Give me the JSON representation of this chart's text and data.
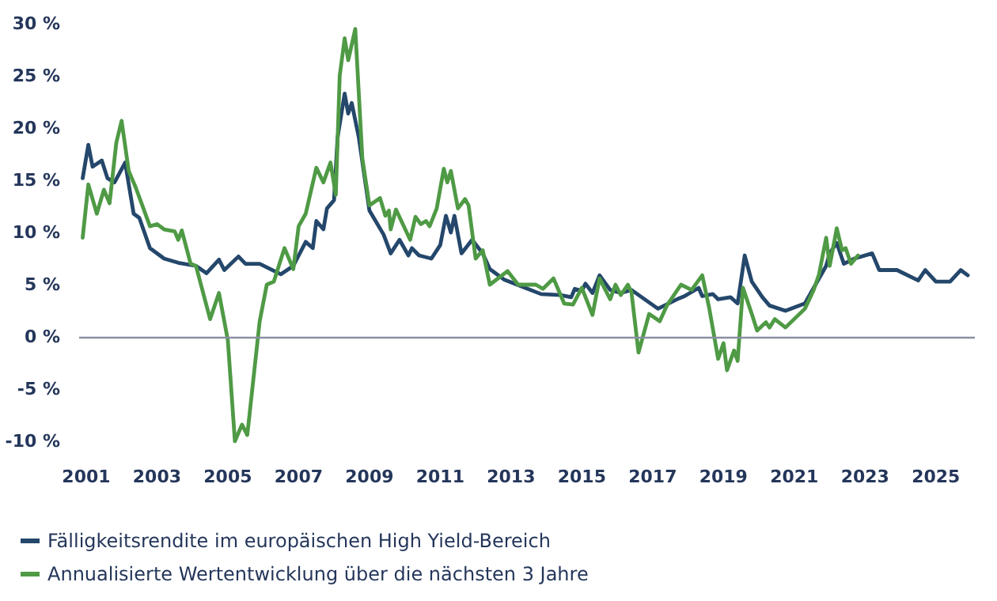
{
  "chart_data": {
    "type": "line",
    "legend": "bottom left",
    "grid": false,
    "marker": "none",
    "line_style": "solid",
    "xlim": [
      2000.8,
      2026.1
    ],
    "xticks": [
      2001,
      2003,
      2005,
      2007,
      2009,
      2011,
      2013,
      2015,
      2017,
      2019,
      2021,
      2023,
      2025
    ],
    "ylim": [
      -10,
      30
    ],
    "yticks": [
      {
        "value": -10,
        "label": "-10 %"
      },
      {
        "value": -5,
        "label": "-5 %"
      },
      {
        "value": 0,
        "label": "0 %"
      },
      {
        "value": 5,
        "label": "5 %"
      },
      {
        "value": 10,
        "label": "10 %"
      },
      {
        "value": 15,
        "label": "15 %"
      },
      {
        "value": 20,
        "label": "20 %"
      },
      {
        "value": 25,
        "label": "25 %"
      },
      {
        "value": 30,
        "label": "30 %"
      }
    ],
    "ref_lines": [
      {
        "axis": "y",
        "value": 0,
        "color": "#8a8fa3"
      }
    ],
    "series": [
      {
        "name": "Fälligkeitsrendite im europäischen High Yield-Bereich",
        "color": "#24476b",
        "x": [
          2000.9,
          2001.06,
          2001.18,
          2001.44,
          2001.6,
          2001.8,
          2002.1,
          2002.34,
          2002.5,
          2002.8,
          2003.2,
          2003.6,
          2004.1,
          2004.4,
          2004.75,
          2004.9,
          2005.3,
          2005.5,
          2005.9,
          2006.5,
          2006.85,
          2007.0,
          2007.2,
          2007.4,
          2007.5,
          2007.7,
          2007.8,
          2008.0,
          2008.1,
          2008.3,
          2008.4,
          2008.5,
          2008.7,
          2009.0,
          2009.4,
          2009.6,
          2009.85,
          2010.1,
          2010.2,
          2010.4,
          2010.75,
          2011.0,
          2011.16,
          2011.3,
          2011.4,
          2011.6,
          2011.9,
          2012.2,
          2012.4,
          2012.8,
          2013.4,
          2013.85,
          2014.4,
          2014.7,
          2014.8,
          2015.0,
          2015.1,
          2015.3,
          2015.5,
          2015.8,
          2016.1,
          2016.4,
          2017.15,
          2017.75,
          2017.9,
          2018.3,
          2018.4,
          2018.7,
          2018.85,
          2019.2,
          2019.4,
          2019.6,
          2019.8,
          2020.1,
          2020.3,
          2020.75,
          2021.3,
          2021.65,
          2021.9,
          2022.0,
          2022.2,
          2022.4,
          2022.7,
          2023.2,
          2023.4,
          2023.9,
          2024.5,
          2024.7,
          2025.0,
          2025.4,
          2025.7,
          2025.9
        ],
        "values": [
          15.2,
          18.4,
          16.3,
          16.9,
          15.2,
          14.8,
          16.7,
          11.8,
          11.4,
          8.5,
          7.5,
          7.1,
          6.8,
          6.1,
          7.4,
          6.4,
          7.7,
          7.0,
          7.0,
          6.0,
          6.8,
          7.8,
          9.1,
          8.5,
          11.1,
          10.3,
          12.3,
          13.1,
          19.1,
          23.3,
          21.4,
          22.4,
          19.1,
          12.1,
          9.8,
          8.0,
          9.3,
          7.8,
          8.5,
          7.8,
          7.5,
          8.8,
          11.6,
          10.0,
          11.6,
          8.0,
          9.3,
          8.0,
          6.5,
          5.5,
          4.7,
          4.1,
          4.0,
          3.8,
          4.6,
          4.4,
          5.1,
          4.2,
          5.9,
          4.5,
          4.2,
          4.5,
          2.7,
          3.7,
          3.9,
          4.7,
          3.9,
          4.1,
          3.6,
          3.8,
          3.2,
          7.8,
          5.3,
          3.8,
          3.0,
          2.5,
          3.2,
          5.3,
          6.8,
          8.0,
          9.0,
          7.0,
          7.5,
          8.0,
          6.4,
          6.4,
          5.4,
          6.4,
          5.3,
          5.3,
          6.4,
          5.9
        ]
      },
      {
        "name": "Annualisierte Wertentwicklung über die nächsten 3 Jahre",
        "color": "#4f9a45",
        "x": [
          2000.9,
          2001.06,
          2001.3,
          2001.5,
          2001.66,
          2001.85,
          2002.0,
          2002.2,
          2002.4,
          2002.8,
          2003.0,
          2003.2,
          2003.5,
          2003.6,
          2003.7,
          2003.95,
          2004.1,
          2004.5,
          2004.75,
          2005.0,
          2005.2,
          2005.4,
          2005.55,
          2005.9,
          2006.1,
          2006.3,
          2006.6,
          2006.85,
          2007.0,
          2007.2,
          2007.5,
          2007.7,
          2007.9,
          2008.05,
          2008.16,
          2008.3,
          2008.4,
          2008.6,
          2008.8,
          2009.0,
          2009.3,
          2009.45,
          2009.55,
          2009.6,
          2009.75,
          2010.15,
          2010.3,
          2010.45,
          2010.6,
          2010.7,
          2010.9,
          2011.1,
          2011.2,
          2011.3,
          2011.5,
          2011.7,
          2011.8,
          2012.0,
          2012.2,
          2012.4,
          2012.9,
          2013.2,
          2013.7,
          2013.9,
          2014.2,
          2014.5,
          2014.75,
          2015.0,
          2015.3,
          2015.5,
          2015.8,
          2015.95,
          2016.1,
          2016.3,
          2016.4,
          2016.6,
          2016.9,
          2017.2,
          2017.4,
          2017.8,
          2018.1,
          2018.4,
          2018.6,
          2018.85,
          2019.0,
          2019.1,
          2019.3,
          2019.4,
          2019.55,
          2019.8,
          2019.95,
          2020.2,
          2020.3,
          2020.45,
          2020.75,
          2021.3,
          2021.55,
          2021.7,
          2021.9,
          2022.0,
          2022.2,
          2022.35,
          2022.45,
          2022.6,
          2022.8
        ],
        "values": [
          9.5,
          14.6,
          11.8,
          14.1,
          12.8,
          18.6,
          20.7,
          15.9,
          14.3,
          10.6,
          10.8,
          10.3,
          10.1,
          9.3,
          10.2,
          7.0,
          6.8,
          1.7,
          4.2,
          -0.3,
          -10,
          -8.4,
          -9.4,
          1.5,
          5.0,
          5.3,
          8.5,
          6.5,
          10.6,
          11.8,
          16.2,
          14.8,
          16.7,
          13.6,
          25.0,
          28.6,
          26.5,
          29.5,
          17.1,
          12.6,
          13.3,
          11.6,
          12.1,
          10.3,
          12.2,
          9.3,
          11.5,
          10.8,
          11.1,
          10.6,
          12.3,
          16.1,
          14.8,
          15.9,
          12.3,
          13.2,
          12.6,
          7.5,
          8.3,
          5.0,
          6.3,
          5.0,
          5.0,
          4.6,
          5.6,
          3.2,
          3.1,
          4.7,
          2.1,
          5.6,
          3.6,
          5.0,
          4.0,
          5.0,
          4.3,
          -1.5,
          2.2,
          1.5,
          3.0,
          5.0,
          4.5,
          5.9,
          2.7,
          -2.1,
          -0.6,
          -3.2,
          -1.3,
          -2.3,
          4.7,
          2.2,
          0.6,
          1.4,
          0.9,
          1.7,
          0.9,
          2.7,
          4.5,
          6.0,
          9.5,
          6.8,
          10.4,
          8.3,
          8.5,
          7.0,
          7.8
        ]
      }
    ]
  }
}
